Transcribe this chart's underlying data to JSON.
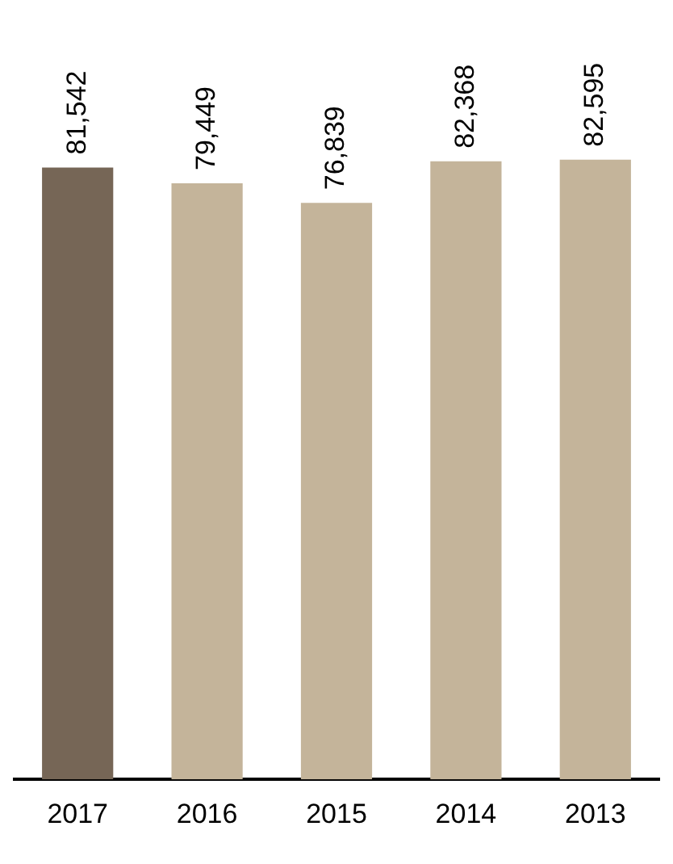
{
  "chart_data": {
    "type": "bar",
    "categories": [
      "2017",
      "2016",
      "2015",
      "2014",
      "2013"
    ],
    "values": [
      81542,
      79449,
      76839,
      82368,
      82595
    ],
    "colors": [
      "#766656",
      "#c4b49a",
      "#c4b49a",
      "#c4b49a",
      "#c4b49a"
    ],
    "value_labels": [
      "81,542",
      "79,449",
      "76,839",
      "82,368",
      "82,595"
    ],
    "legend": false
  }
}
